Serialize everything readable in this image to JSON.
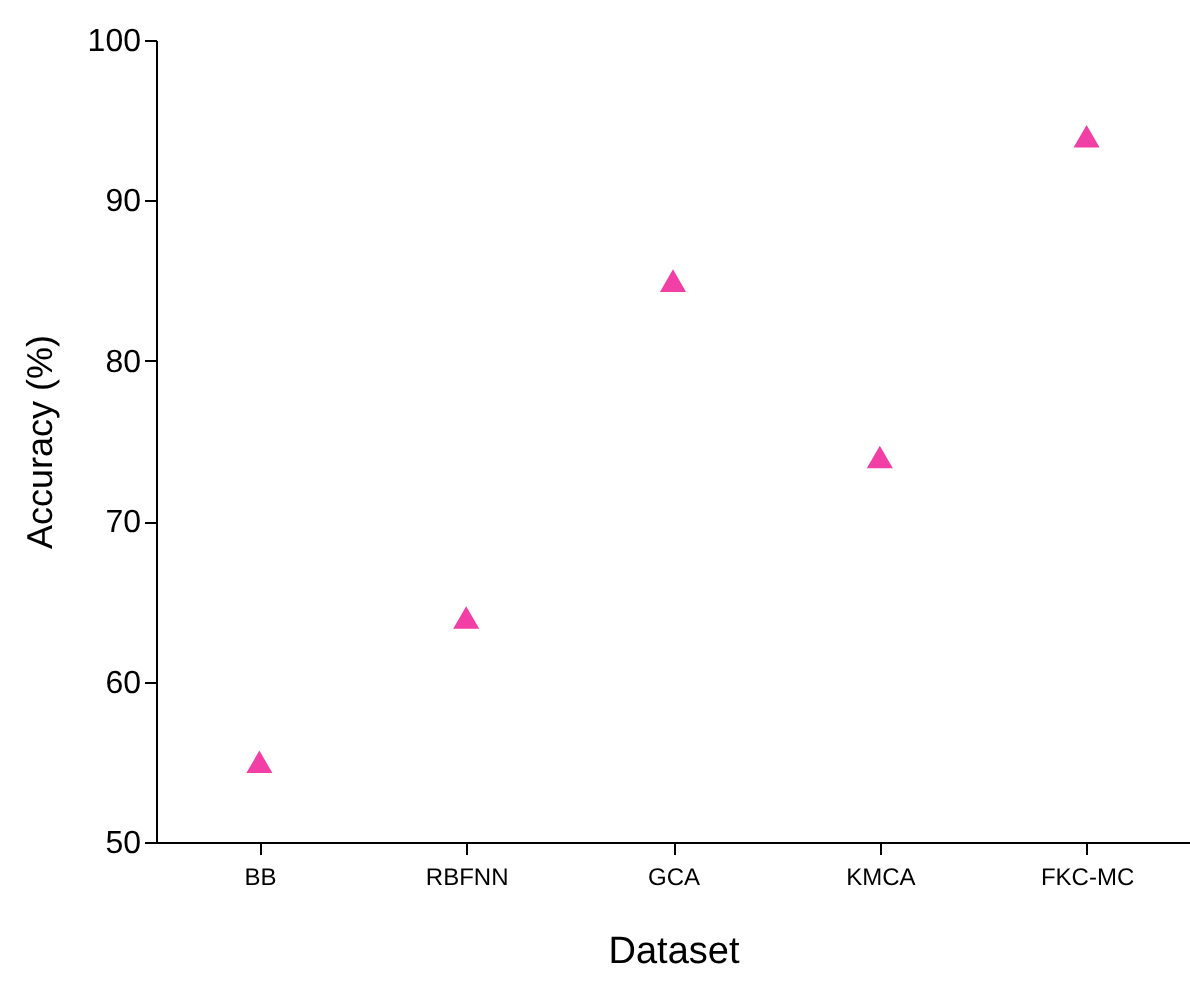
{
  "chart_data": {
    "type": "scatter",
    "xlabel": "Dataset",
    "ylabel": "Accuracy (%)",
    "categories": [
      "BB",
      "RBFNN",
      "GCA",
      "KMCA",
      "FKC-MC"
    ],
    "series": [
      {
        "color": "#f23fa6",
        "values": [
          55,
          64,
          85,
          74,
          94
        ]
      }
    ],
    "ylim": [
      50,
      100
    ],
    "yticks": [
      50,
      60,
      70,
      80,
      90,
      100
    ],
    "grid": false,
    "legend": false,
    "marker": "triangle"
  }
}
